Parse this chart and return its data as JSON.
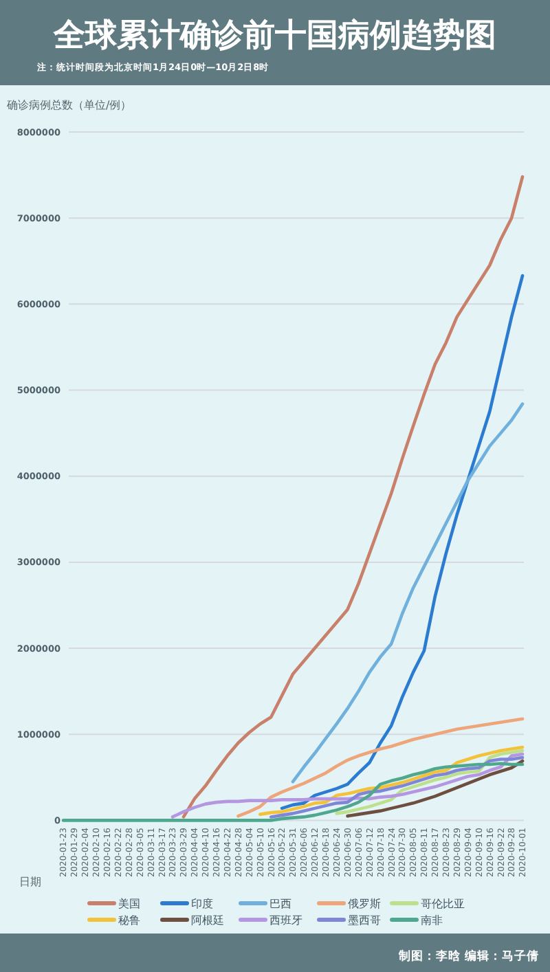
{
  "chart_data": {
    "type": "line",
    "title": "全球累计确诊前十国病例趋势图",
    "subtitle": "注：统计时间段为北京时间1月24日0时—10月2日8时",
    "ylabel": "确诊病例总数（单位/例）",
    "xlabel": "日期",
    "categories": [
      "2020-01-23",
      "2020-01-29",
      "2020-02-04",
      "2020-02-10",
      "2020-02-16",
      "2020-02-22",
      "2020-02-28",
      "2020-03-05",
      "2020-03-11",
      "2020-03-17",
      "2020-03-23",
      "2020-03-29",
      "2020-04-04",
      "2020-04-10",
      "2020-04-16",
      "2020-04-22",
      "2020-04-28",
      "2020-05-04",
      "2020-05-10",
      "2020-05-16",
      "2020-05-22",
      "2020-05-31",
      "2020-06-06",
      "2020-06-12",
      "2020-06-18",
      "2020-06-24",
      "2020-06-30",
      "2020-07-06",
      "2020-07-12",
      "2020-07-18",
      "2020-07-24",
      "2020-07-30",
      "2020-08-05",
      "2020-08-11",
      "2020-08-17",
      "2020-08-23",
      "2020-08-29",
      "2020-09-04",
      "2020-09-10",
      "2020-09-16",
      "2020-09-22",
      "2020-09-28",
      "2020-10-01"
    ],
    "ylim": [
      0,
      8000000
    ],
    "yticks": [
      0,
      1000000,
      2000000,
      3000000,
      4000000,
      5000000,
      6000000,
      7000000,
      8000000
    ],
    "grid": "y",
    "legend": "bottom",
    "annotations": [
      "制图：李晗 编辑：马子倩"
    ],
    "series": [
      {
        "name": "美国",
        "color": "#c9806b",
        "values": [
          null,
          null,
          null,
          null,
          null,
          null,
          null,
          null,
          null,
          null,
          null,
          40000,
          250000,
          400000,
          580000,
          750000,
          900000,
          1020000,
          1120000,
          1200000,
          1450000,
          1700000,
          1850000,
          2000000,
          2150000,
          2300000,
          2450000,
          2750000,
          3100000,
          3450000,
          3800000,
          4200000,
          4580000,
          4950000,
          5300000,
          5550000,
          5850000,
          6050000,
          6250000,
          6450000,
          6750000,
          7000000,
          7480000
        ]
      },
      {
        "name": "印度",
        "color": "#2b7bd0",
        "values": [
          null,
          null,
          null,
          null,
          null,
          null,
          null,
          null,
          null,
          null,
          null,
          null,
          null,
          null,
          null,
          null,
          null,
          null,
          null,
          null,
          140000,
          180000,
          200000,
          290000,
          330000,
          370000,
          420000,
          550000,
          670000,
          900000,
          1100000,
          1430000,
          1720000,
          1970000,
          2600000,
          3100000,
          3550000,
          3950000,
          4350000,
          4750000,
          5300000,
          5850000,
          6330000
        ]
      },
      {
        "name": "巴西",
        "color": "#6fb0dc",
        "values": [
          null,
          null,
          null,
          null,
          null,
          null,
          null,
          null,
          null,
          null,
          null,
          null,
          null,
          null,
          null,
          null,
          null,
          null,
          null,
          null,
          null,
          450000,
          620000,
          780000,
          950000,
          1120000,
          1300000,
          1500000,
          1720000,
          1900000,
          2050000,
          2400000,
          2700000,
          2950000,
          3200000,
          3450000,
          3700000,
          3950000,
          4150000,
          4350000,
          4500000,
          4650000,
          4840000
        ]
      },
      {
        "name": "俄罗斯",
        "color": "#eea57a",
        "values": [
          null,
          null,
          null,
          null,
          null,
          null,
          null,
          null,
          null,
          null,
          null,
          null,
          null,
          null,
          null,
          null,
          50000,
          100000,
          160000,
          270000,
          330000,
          380000,
          430000,
          490000,
          550000,
          630000,
          700000,
          750000,
          790000,
          830000,
          860000,
          900000,
          940000,
          970000,
          1000000,
          1030000,
          1060000,
          1080000,
          1100000,
          1120000,
          1140000,
          1160000,
          1180000
        ]
      },
      {
        "name": "哥伦比亚",
        "color": "#bde08c",
        "values": [
          null,
          null,
          null,
          null,
          null,
          null,
          null,
          null,
          null,
          null,
          null,
          null,
          null,
          null,
          null,
          null,
          null,
          null,
          null,
          null,
          null,
          null,
          null,
          null,
          null,
          80000,
          100000,
          130000,
          160000,
          200000,
          240000,
          350000,
          390000,
          430000,
          470000,
          500000,
          540000,
          560000,
          570000,
          730000,
          770000,
          790000,
          810000
        ]
      },
      {
        "name": "秘鲁",
        "color": "#f2c23a",
        "values": [
          null,
          null,
          null,
          null,
          null,
          null,
          null,
          null,
          null,
          null,
          null,
          null,
          null,
          null,
          null,
          null,
          null,
          null,
          70000,
          90000,
          100000,
          130000,
          160000,
          200000,
          210000,
          290000,
          310000,
          340000,
          370000,
          380000,
          410000,
          440000,
          480000,
          520000,
          560000,
          580000,
          670000,
          710000,
          750000,
          780000,
          810000,
          830000,
          850000
        ]
      },
      {
        "name": "阿根廷",
        "color": "#6e4e3e",
        "values": [
          null,
          null,
          null,
          null,
          null,
          null,
          null,
          null,
          null,
          null,
          null,
          null,
          null,
          null,
          null,
          null,
          null,
          null,
          null,
          null,
          null,
          null,
          null,
          null,
          null,
          null,
          50000,
          70000,
          90000,
          110000,
          140000,
          170000,
          200000,
          240000,
          280000,
          330000,
          380000,
          430000,
          480000,
          530000,
          570000,
          610000,
          690000
        ]
      },
      {
        "name": "西班牙",
        "color": "#b497e0",
        "values": [
          null,
          null,
          null,
          null,
          null,
          null,
          null,
          null,
          null,
          null,
          40000,
          100000,
          150000,
          190000,
          210000,
          220000,
          220000,
          230000,
          230000,
          230000,
          240000,
          240000,
          240000,
          250000,
          250000,
          250000,
          250000,
          260000,
          250000,
          270000,
          280000,
          300000,
          330000,
          360000,
          390000,
          430000,
          470000,
          510000,
          530000,
          580000,
          620000,
          750000,
          770000
        ]
      },
      {
        "name": "墨西哥",
        "color": "#7f86d6",
        "values": [
          null,
          null,
          null,
          null,
          null,
          null,
          null,
          null,
          null,
          null,
          null,
          null,
          null,
          null,
          null,
          null,
          null,
          null,
          null,
          40000,
          60000,
          80000,
          110000,
          140000,
          170000,
          200000,
          210000,
          300000,
          330000,
          340000,
          370000,
          400000,
          440000,
          480000,
          520000,
          540000,
          580000,
          600000,
          610000,
          690000,
          710000,
          710000,
          730000
        ]
      },
      {
        "name": "南非",
        "color": "#4fa88e",
        "values": [
          0,
          0,
          0,
          0,
          0,
          0,
          0,
          0,
          0,
          0,
          0,
          0,
          0,
          0,
          0,
          0,
          0,
          0,
          0,
          0,
          20000,
          30000,
          40000,
          60000,
          90000,
          120000,
          160000,
          210000,
          290000,
          420000,
          460000,
          490000,
          530000,
          560000,
          600000,
          620000,
          630000,
          640000,
          650000,
          650000,
          660000,
          650000,
          650000
        ]
      }
    ]
  }
}
